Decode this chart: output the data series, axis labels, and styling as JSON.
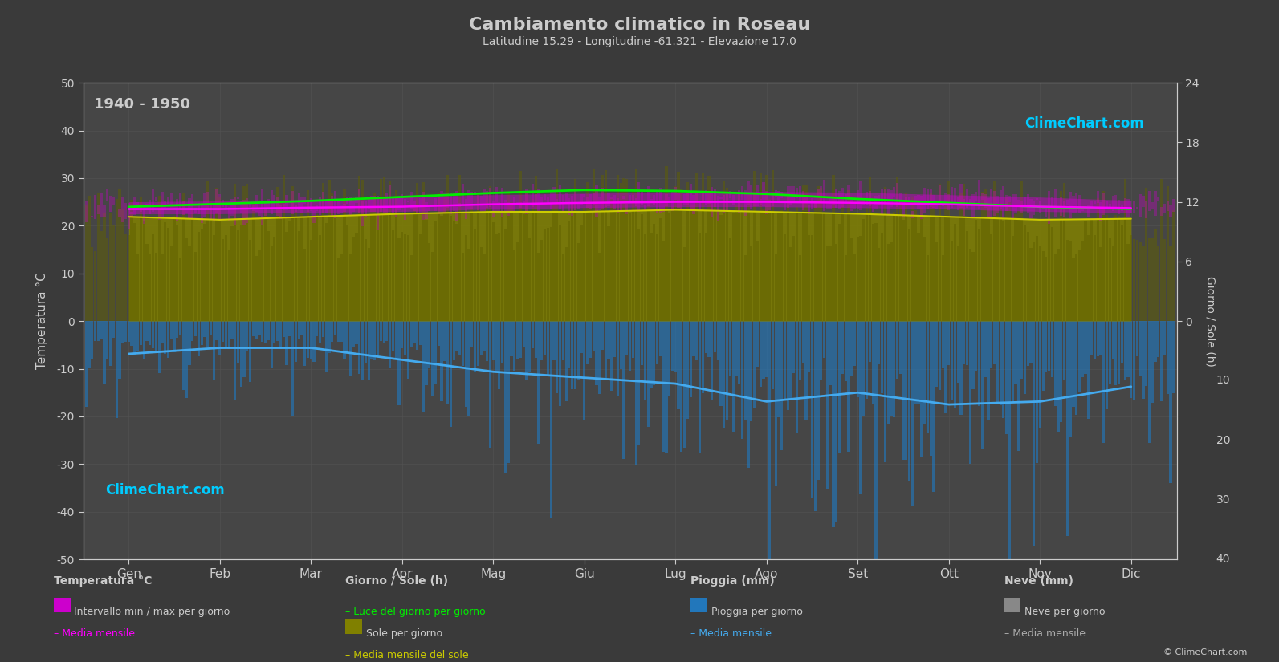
{
  "title": "Cambiamento climatico in Roseau",
  "subtitle": "Latitudine 15.29 - Longitudine -61.321 - Elevazione 17.0",
  "year_range": "1940 - 1950",
  "bg_color": "#3a3a3a",
  "plot_bg_color": "#464646",
  "grid_color": "#555555",
  "text_color": "#cccccc",
  "months": [
    "Gen",
    "Feb",
    "Mar",
    "Apr",
    "Mag",
    "Giu",
    "Lug",
    "Ago",
    "Set",
    "Ott",
    "Nov",
    "Dic"
  ],
  "temp_yticks": [
    -50,
    -40,
    -30,
    -20,
    -10,
    0,
    10,
    20,
    30,
    40,
    50
  ],
  "sun_yticks_vals": [
    0,
    6,
    12,
    18,
    24
  ],
  "rain_yticks_vals": [
    0,
    10,
    20,
    30,
    40
  ],
  "temp_max_monthly": [
    25.0,
    25.2,
    25.5,
    26.0,
    26.5,
    26.8,
    27.0,
    27.2,
    27.0,
    26.5,
    26.0,
    25.3
  ],
  "temp_min_monthly": [
    22.5,
    22.5,
    22.8,
    23.0,
    23.5,
    23.8,
    24.0,
    24.0,
    23.8,
    23.5,
    23.0,
    22.7
  ],
  "temp_mean_monthly": [
    23.5,
    23.5,
    23.8,
    24.0,
    24.5,
    24.8,
    25.0,
    25.0,
    24.8,
    24.5,
    24.0,
    23.7
  ],
  "daylight_monthly": [
    11.5,
    11.8,
    12.1,
    12.5,
    12.9,
    13.2,
    13.1,
    12.8,
    12.3,
    11.9,
    11.5,
    11.3
  ],
  "sunshine_monthly": [
    10.5,
    10.2,
    10.5,
    10.8,
    11.0,
    11.0,
    11.2,
    11.0,
    10.8,
    10.5,
    10.2,
    10.3
  ],
  "rain_mean_monthly_mm": [
    5.5,
    4.5,
    4.5,
    6.5,
    8.5,
    9.5,
    10.5,
    13.5,
    12.0,
    14.0,
    13.5,
    11.0
  ],
  "colors": {
    "sunshine_fill": "#808000",
    "sunshine_line": "#cccc00",
    "daylight_line": "#00ee00",
    "temp_band_magenta": "#cc00cc",
    "temp_mean_line": "#ff00ff",
    "rain_bar": "#2277bb",
    "rain_mean_line": "#44aaee",
    "snow_bar": "#888888",
    "snow_mean_line": "#aaaaaa"
  },
  "logo_text": "ClimeChart.com",
  "copyright_text": "© ClimeChart.com"
}
